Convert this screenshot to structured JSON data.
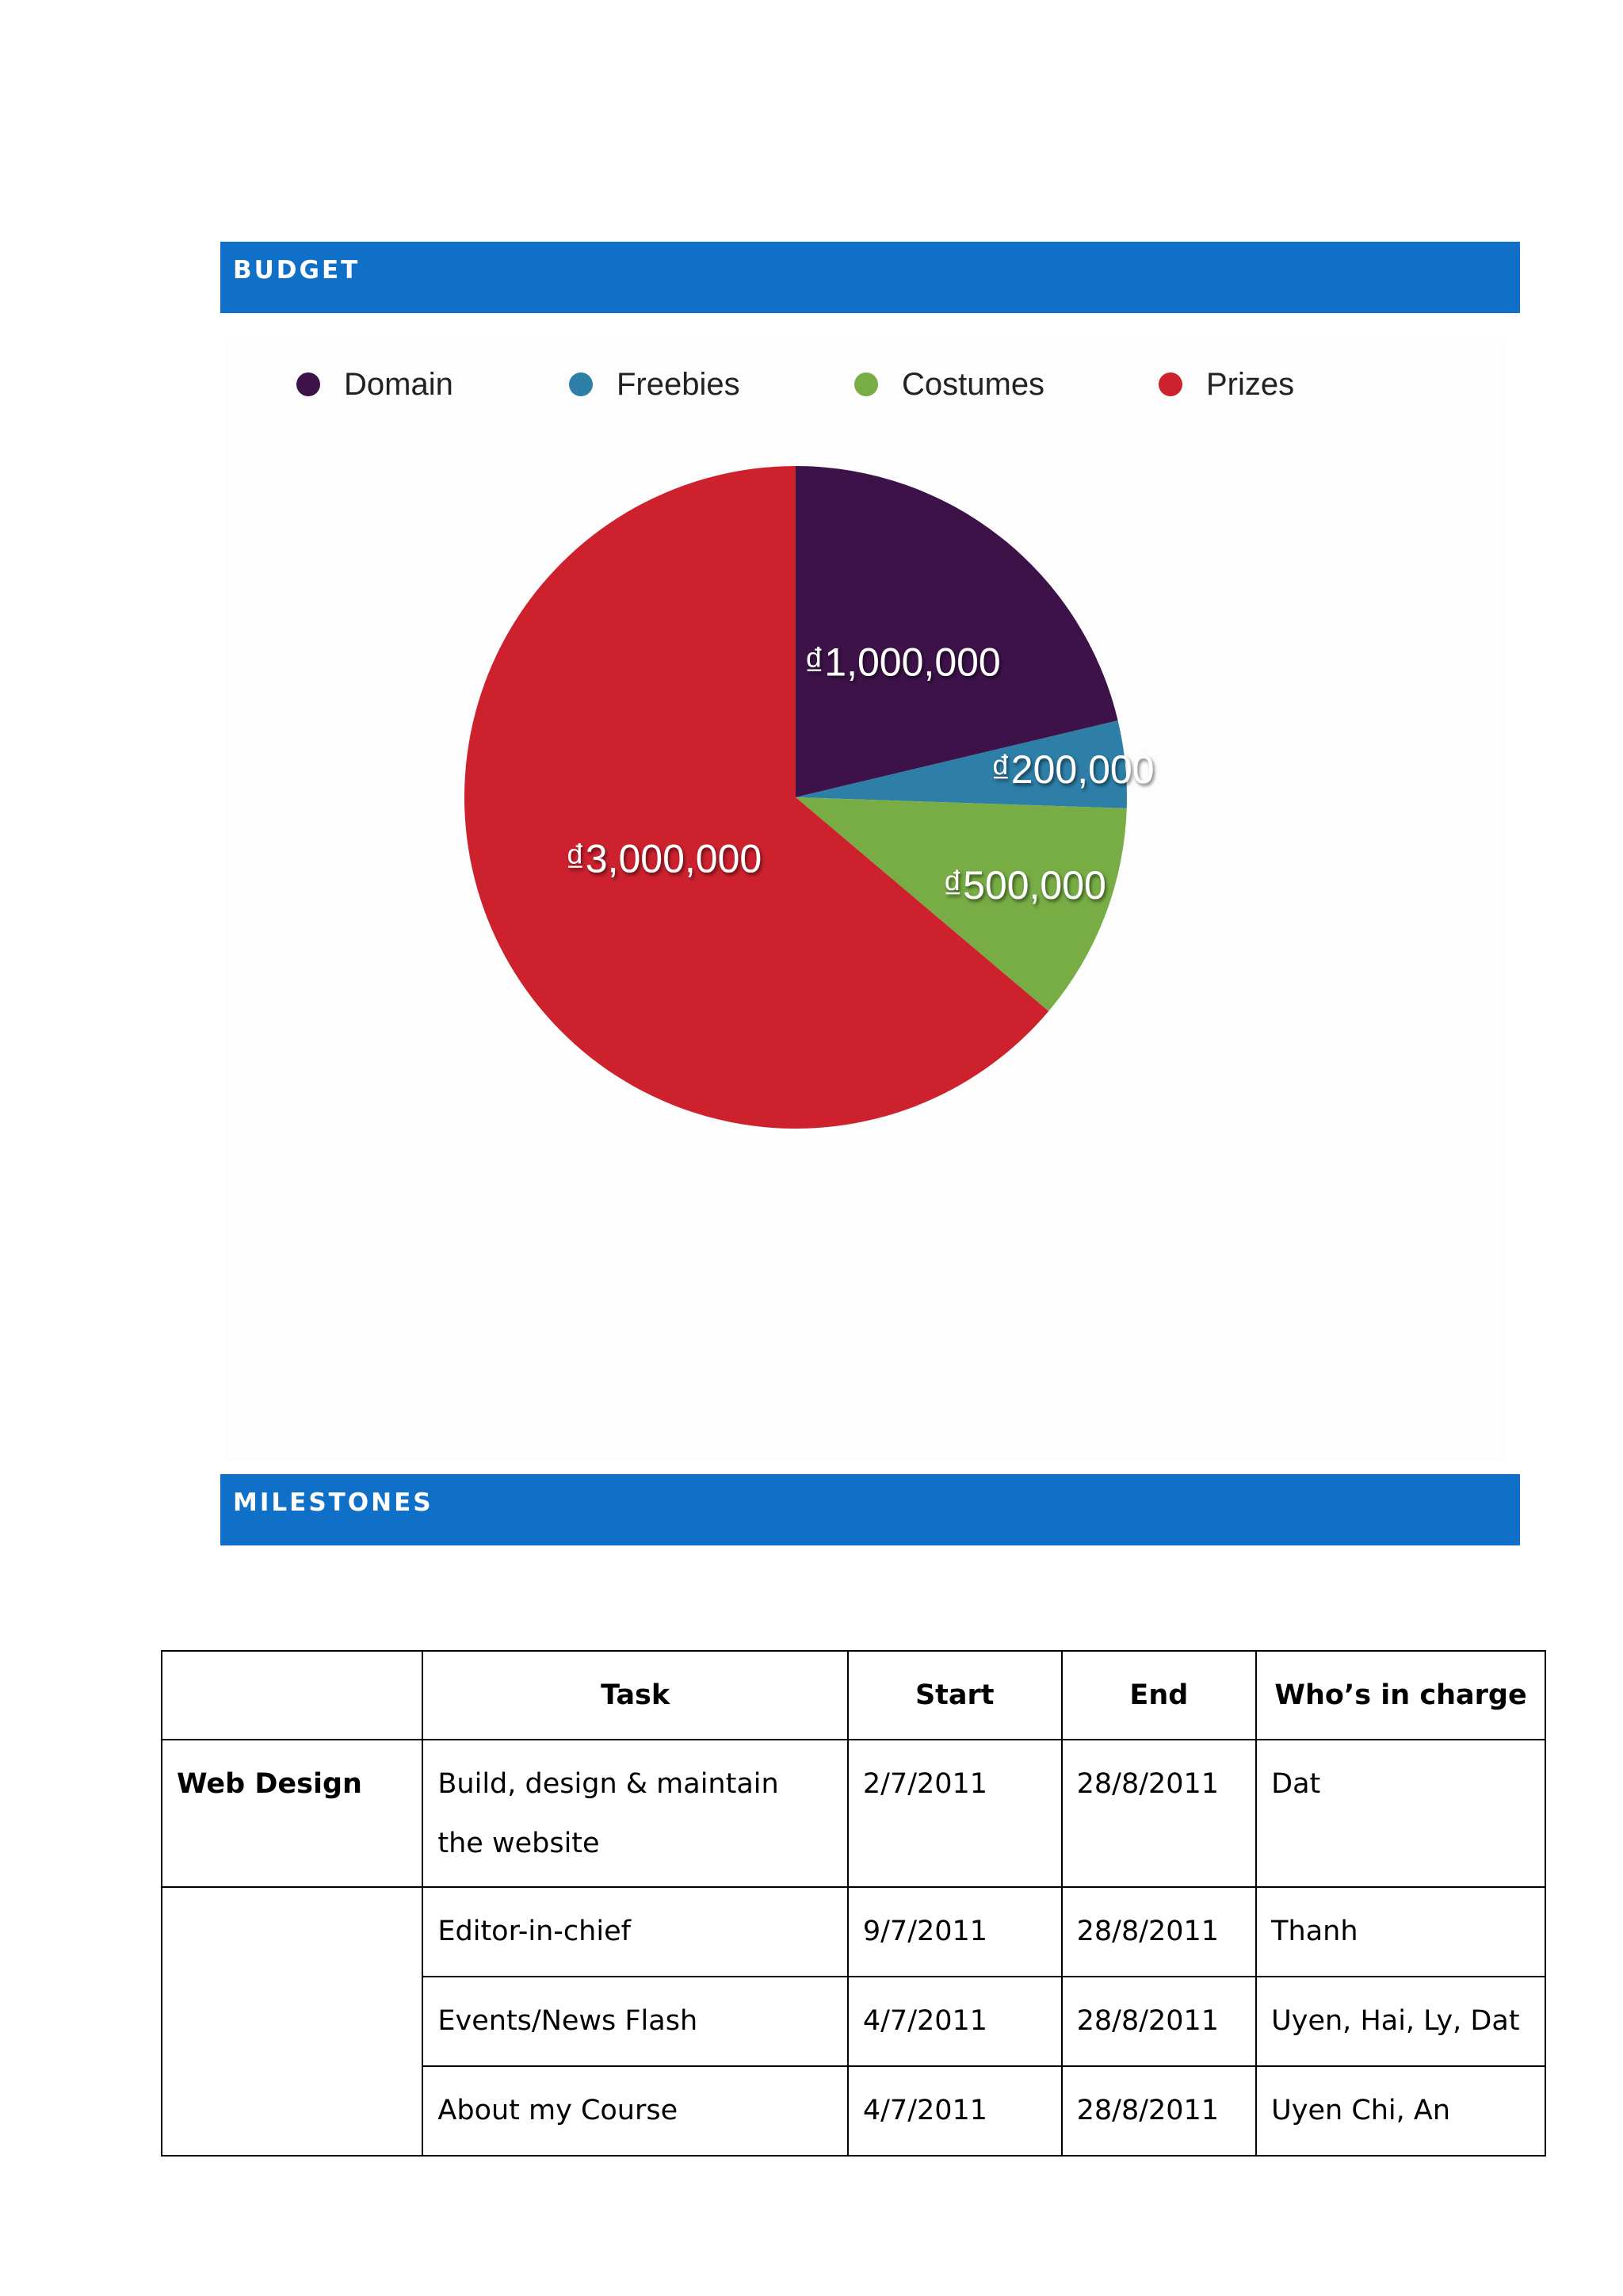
{
  "sections": {
    "budget_title": "BUDGET",
    "milestones_title": "MILESTONES"
  },
  "colors": {
    "section_bar": "#1070c8",
    "domain": "#3c1249",
    "freebies": "#2d7fa8",
    "costumes": "#77ad44",
    "prizes": "#cd212e"
  },
  "chart_data": {
    "type": "pie",
    "title": "",
    "legend_position": "top",
    "slices": [
      {
        "name": "Domain",
        "value": 1000000,
        "label": "₫1,000,000",
        "color": "#3c1249"
      },
      {
        "name": "Freebies",
        "value": 200000,
        "label": "₫200,000",
        "color": "#2d7fa8"
      },
      {
        "name": "Costumes",
        "value": 500000,
        "label": "₫500,000",
        "color": "#77ad44"
      },
      {
        "name": "Prizes",
        "value": 3000000,
        "label": "₫3,000,000",
        "color": "#cd212e"
      }
    ]
  },
  "table": {
    "headers": [
      "",
      "Task",
      "Start",
      "End",
      "Who’s in charge"
    ],
    "rows": [
      [
        "Web Design",
        "Build, design & maintain the website",
        "2/7/2011",
        "28/8/2011",
        "Dat"
      ],
      [
        "",
        "Editor-in-chief",
        "9/7/2011",
        "28/8/2011",
        "Thanh"
      ],
      [
        "",
        "Events/News Flash",
        "4/7/2011",
        "28/8/2011",
        "Uyen, Hai, Ly, Dat"
      ],
      [
        "",
        "About my Course",
        "4/7/2011",
        "28/8/2011",
        "Uyen Chi, An"
      ]
    ]
  }
}
